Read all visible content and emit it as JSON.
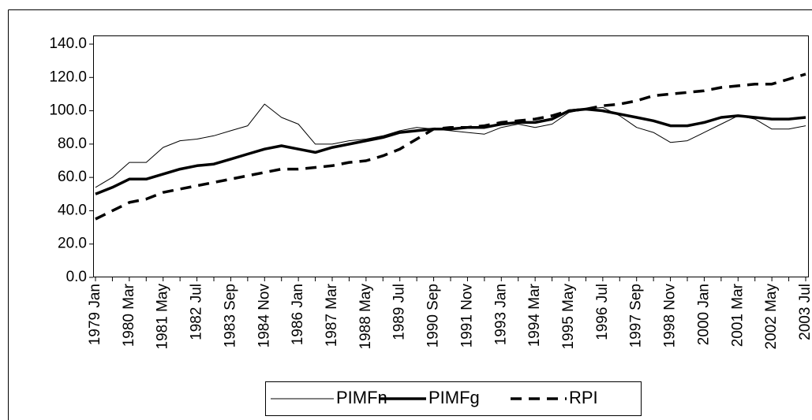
{
  "chart_data": {
    "type": "line",
    "categories": [
      "1979 Jan",
      null,
      "1980 Mar",
      null,
      "1981 May",
      null,
      "1982 Jul",
      null,
      "1983 Sep",
      null,
      "1984 Nov",
      null,
      "1986 Jan",
      null,
      "1987 Mar",
      null,
      "1988 May",
      null,
      "1989 Jul",
      null,
      "1990 Sep",
      null,
      "1991 Nov",
      null,
      "1993 Jan",
      null,
      "1994 Mar",
      null,
      "1995 May",
      null,
      "1996 Jul",
      null,
      "1997 Sep",
      null,
      "1998 Nov",
      null,
      "2000 Jan",
      null,
      "2001 Mar",
      null,
      "2002 May",
      null,
      "2003 Jul"
    ],
    "series": [
      {
        "name": "PIMFn",
        "color": "#000000",
        "width": 1,
        "dashed": false,
        "values": [
          54,
          60,
          69,
          69,
          78,
          82,
          83,
          85,
          88,
          91,
          104,
          96,
          92,
          80,
          80,
          82,
          83,
          85,
          88,
          90,
          89,
          88,
          87,
          86,
          90,
          92,
          90,
          92,
          99,
          101,
          102,
          97,
          90,
          87,
          81,
          82,
          87,
          92,
          97,
          95,
          89,
          89,
          91
        ]
      },
      {
        "name": "PIMFg",
        "color": "#000000",
        "width": 3.5,
        "dashed": false,
        "values": [
          50,
          54,
          59,
          59,
          62,
          65,
          67,
          68,
          71,
          74,
          77,
          79,
          77,
          75,
          78,
          80,
          82,
          84,
          87,
          88,
          89,
          89,
          90,
          90,
          92,
          93,
          93,
          95,
          100,
          101,
          100,
          98,
          96,
          94,
          91,
          91,
          93,
          96,
          97,
          96,
          95,
          95,
          96
        ]
      },
      {
        "name": "RPI",
        "color": "#000000",
        "width": 3.5,
        "dashed": true,
        "values": [
          35,
          40,
          45,
          47,
          51,
          53,
          55,
          57,
          59,
          61,
          63,
          65,
          65,
          66,
          67,
          69,
          70,
          73,
          77,
          83,
          89,
          90,
          90,
          91,
          93,
          94,
          95,
          97,
          100,
          101,
          103,
          104,
          106,
          109,
          110,
          111,
          112,
          114,
          115,
          116,
          116,
          119,
          122
        ]
      }
    ],
    "ylim": [
      0,
      140
    ],
    "yticks": [
      {
        "value": 0,
        "label": "0.0"
      },
      {
        "value": 20,
        "label": "20.0"
      },
      {
        "value": 40,
        "label": "40.0"
      },
      {
        "value": 60,
        "label": "60.0"
      },
      {
        "value": 80,
        "label": "80.0"
      },
      {
        "value": 100,
        "label": "100.0"
      },
      {
        "value": 120,
        "label": "120.0"
      },
      {
        "value": 140,
        "label": "140.0"
      }
    ],
    "grid": false,
    "legend": "bottom"
  }
}
